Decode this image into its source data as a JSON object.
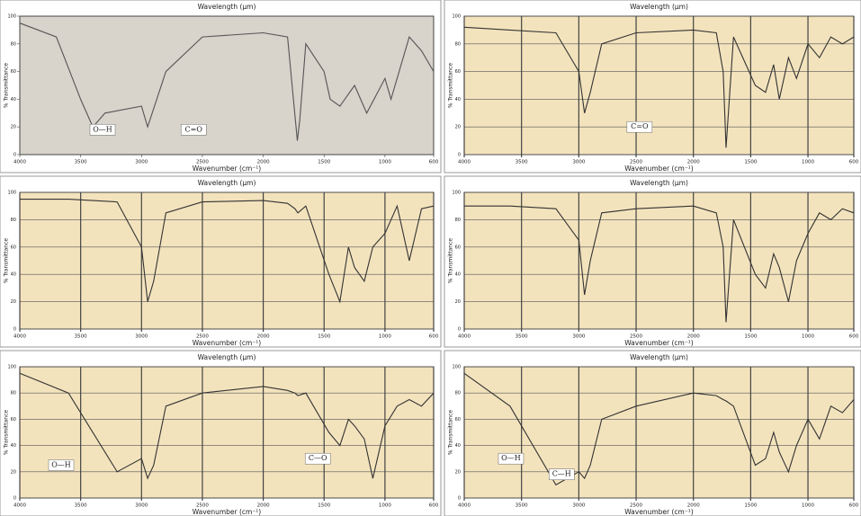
{
  "chart_data": [
    {
      "type": "line",
      "title": "Wavelength (µm)",
      "x_label": "Wavenumber (cm⁻¹)",
      "y_label": "% Transmittance",
      "x": [
        4000,
        3700,
        3500,
        3400,
        3300,
        3000,
        2950,
        2800,
        2500,
        2000,
        1800,
        1720,
        1700,
        1650,
        1500,
        1450,
        1370,
        1250,
        1150,
        1000,
        950,
        800,
        700,
        600
      ],
      "series": [
        {
          "color": "#555555",
          "values": [
            95,
            85,
            40,
            20,
            30,
            35,
            20,
            60,
            85,
            88,
            85,
            10,
            25,
            80,
            60,
            40,
            35,
            50,
            30,
            55,
            40,
            85,
            75,
            60
          ]
        }
      ],
      "xlim": [
        4000,
        600
      ],
      "xticks": [
        4000,
        3500,
        3000,
        2500,
        2000,
        1500,
        1000,
        600
      ],
      "ylim": [
        0,
        100
      ],
      "yticks": [
        0,
        20,
        40,
        60,
        80,
        100
      ],
      "grid": false,
      "background": "#d8d3cb",
      "annotations": [
        "O—H",
        "C=O"
      ]
    },
    {
      "type": "line",
      "title": "Wavelength (µm)",
      "x_label": "Wavenumber (cm⁻¹)",
      "y_label": "% Transmittance",
      "x": [
        4000,
        3600,
        3200,
        3000,
        2950,
        2900,
        2800,
        2500,
        2000,
        1800,
        1740,
        1715,
        1650,
        1460,
        1370,
        1300,
        1250,
        1170,
        1100,
        1000,
        900,
        800,
        700,
        600
      ],
      "series": [
        {
          "color": "#333333",
          "values": [
            92,
            90,
            88,
            60,
            30,
            45,
            80,
            88,
            90,
            88,
            60,
            5,
            85,
            50,
            45,
            65,
            40,
            70,
            55,
            80,
            70,
            85,
            80,
            85
          ]
        }
      ],
      "xlim": [
        4000,
        600
      ],
      "xticks": [
        4000,
        3500,
        3000,
        2500,
        2000,
        1500,
        1000,
        600
      ],
      "ylim": [
        0,
        100
      ],
      "yticks": [
        0,
        20,
        40,
        60,
        80,
        100
      ],
      "grid": true,
      "background": "#f3e3bd",
      "annotations": [
        "C=O"
      ]
    },
    {
      "type": "line",
      "title": "Wavelength (µm)",
      "x_label": "Wavenumber (cm⁻¹)",
      "y_label": "% Transmittance",
      "x": [
        4000,
        3600,
        3200,
        3000,
        2950,
        2900,
        2800,
        2500,
        2000,
        1800,
        1740,
        1715,
        1650,
        1460,
        1370,
        1300,
        1250,
        1170,
        1100,
        1000,
        900,
        800,
        700,
        600
      ],
      "series": [
        {
          "color": "#333333",
          "values": [
            95,
            95,
            93,
            60,
            20,
            35,
            85,
            93,
            94,
            92,
            88,
            85,
            90,
            40,
            20,
            60,
            45,
            35,
            60,
            70,
            90,
            50,
            88,
            90
          ]
        }
      ],
      "xlim": [
        4000,
        600
      ],
      "xticks": [
        4000,
        3500,
        3000,
        2500,
        2000,
        1500,
        1000,
        600
      ],
      "ylim": [
        0,
        100
      ],
      "yticks": [
        0,
        20,
        40,
        60,
        80,
        100
      ],
      "grid": true,
      "background": "#f3e3bd",
      "annotations": []
    },
    {
      "type": "line",
      "title": "Wavelength (µm)",
      "x_label": "Wavenumber (cm⁻¹)",
      "y_label": "% Transmittance",
      "x": [
        4000,
        3600,
        3200,
        3000,
        2950,
        2900,
        2800,
        2500,
        2000,
        1800,
        1740,
        1715,
        1650,
        1460,
        1370,
        1300,
        1250,
        1170,
        1100,
        1000,
        900,
        800,
        700,
        600
      ],
      "series": [
        {
          "color": "#333333",
          "values": [
            90,
            90,
            88,
            65,
            25,
            50,
            85,
            88,
            90,
            85,
            60,
            5,
            80,
            40,
            30,
            55,
            45,
            20,
            50,
            70,
            85,
            80,
            88,
            85
          ]
        }
      ],
      "xlim": [
        4000,
        600
      ],
      "xticks": [
        4000,
        3500,
        3000,
        2500,
        2000,
        1500,
        1000,
        600
      ],
      "ylim": [
        0,
        100
      ],
      "yticks": [
        0,
        20,
        40,
        60,
        80,
        100
      ],
      "grid": true,
      "background": "#f3e3bd",
      "annotations": []
    },
    {
      "type": "line",
      "title": "Wavelength (µm)",
      "x_label": "Wavenumber (cm⁻¹)",
      "y_label": "% Transmittance",
      "x": [
        4000,
        3600,
        3200,
        3000,
        2950,
        2900,
        2800,
        2500,
        2000,
        1800,
        1740,
        1715,
        1650,
        1460,
        1370,
        1300,
        1250,
        1170,
        1100,
        1000,
        900,
        800,
        700,
        600
      ],
      "series": [
        {
          "color": "#333333",
          "values": [
            95,
            80,
            20,
            30,
            15,
            25,
            70,
            80,
            85,
            82,
            80,
            78,
            80,
            50,
            40,
            60,
            55,
            45,
            15,
            55,
            70,
            75,
            70,
            80
          ]
        }
      ],
      "xlim": [
        4000,
        600
      ],
      "xticks": [
        4000,
        3500,
        3000,
        2500,
        2000,
        1500,
        1000,
        600
      ],
      "ylim": [
        0,
        100
      ],
      "yticks": [
        0,
        20,
        40,
        60,
        80,
        100
      ],
      "grid": true,
      "background": "#f3e3bd",
      "annotations": [
        "O—H",
        "C—O"
      ]
    },
    {
      "type": "line",
      "title": "Wavelength (µm)",
      "x_label": "Wavenumber (cm⁻¹)",
      "y_label": "% Transmittance",
      "x": [
        4000,
        3600,
        3200,
        3000,
        2950,
        2900,
        2800,
        2500,
        2000,
        1800,
        1740,
        1715,
        1650,
        1460,
        1370,
        1300,
        1250,
        1170,
        1100,
        1000,
        900,
        800,
        700,
        600
      ],
      "series": [
        {
          "color": "#333333",
          "values": [
            95,
            70,
            10,
            20,
            15,
            25,
            60,
            70,
            80,
            78,
            75,
            74,
            70,
            25,
            30,
            50,
            35,
            20,
            40,
            60,
            45,
            70,
            65,
            75
          ]
        }
      ],
      "xlim": [
        4000,
        600
      ],
      "xticks": [
        4000,
        3500,
        3000,
        2500,
        2000,
        1500,
        1000,
        600
      ],
      "ylim": [
        0,
        100
      ],
      "yticks": [
        0,
        20,
        40,
        60,
        80,
        100
      ],
      "grid": true,
      "background": "#f3e3bd",
      "annotations": [
        "O—H",
        "C—H"
      ]
    }
  ]
}
